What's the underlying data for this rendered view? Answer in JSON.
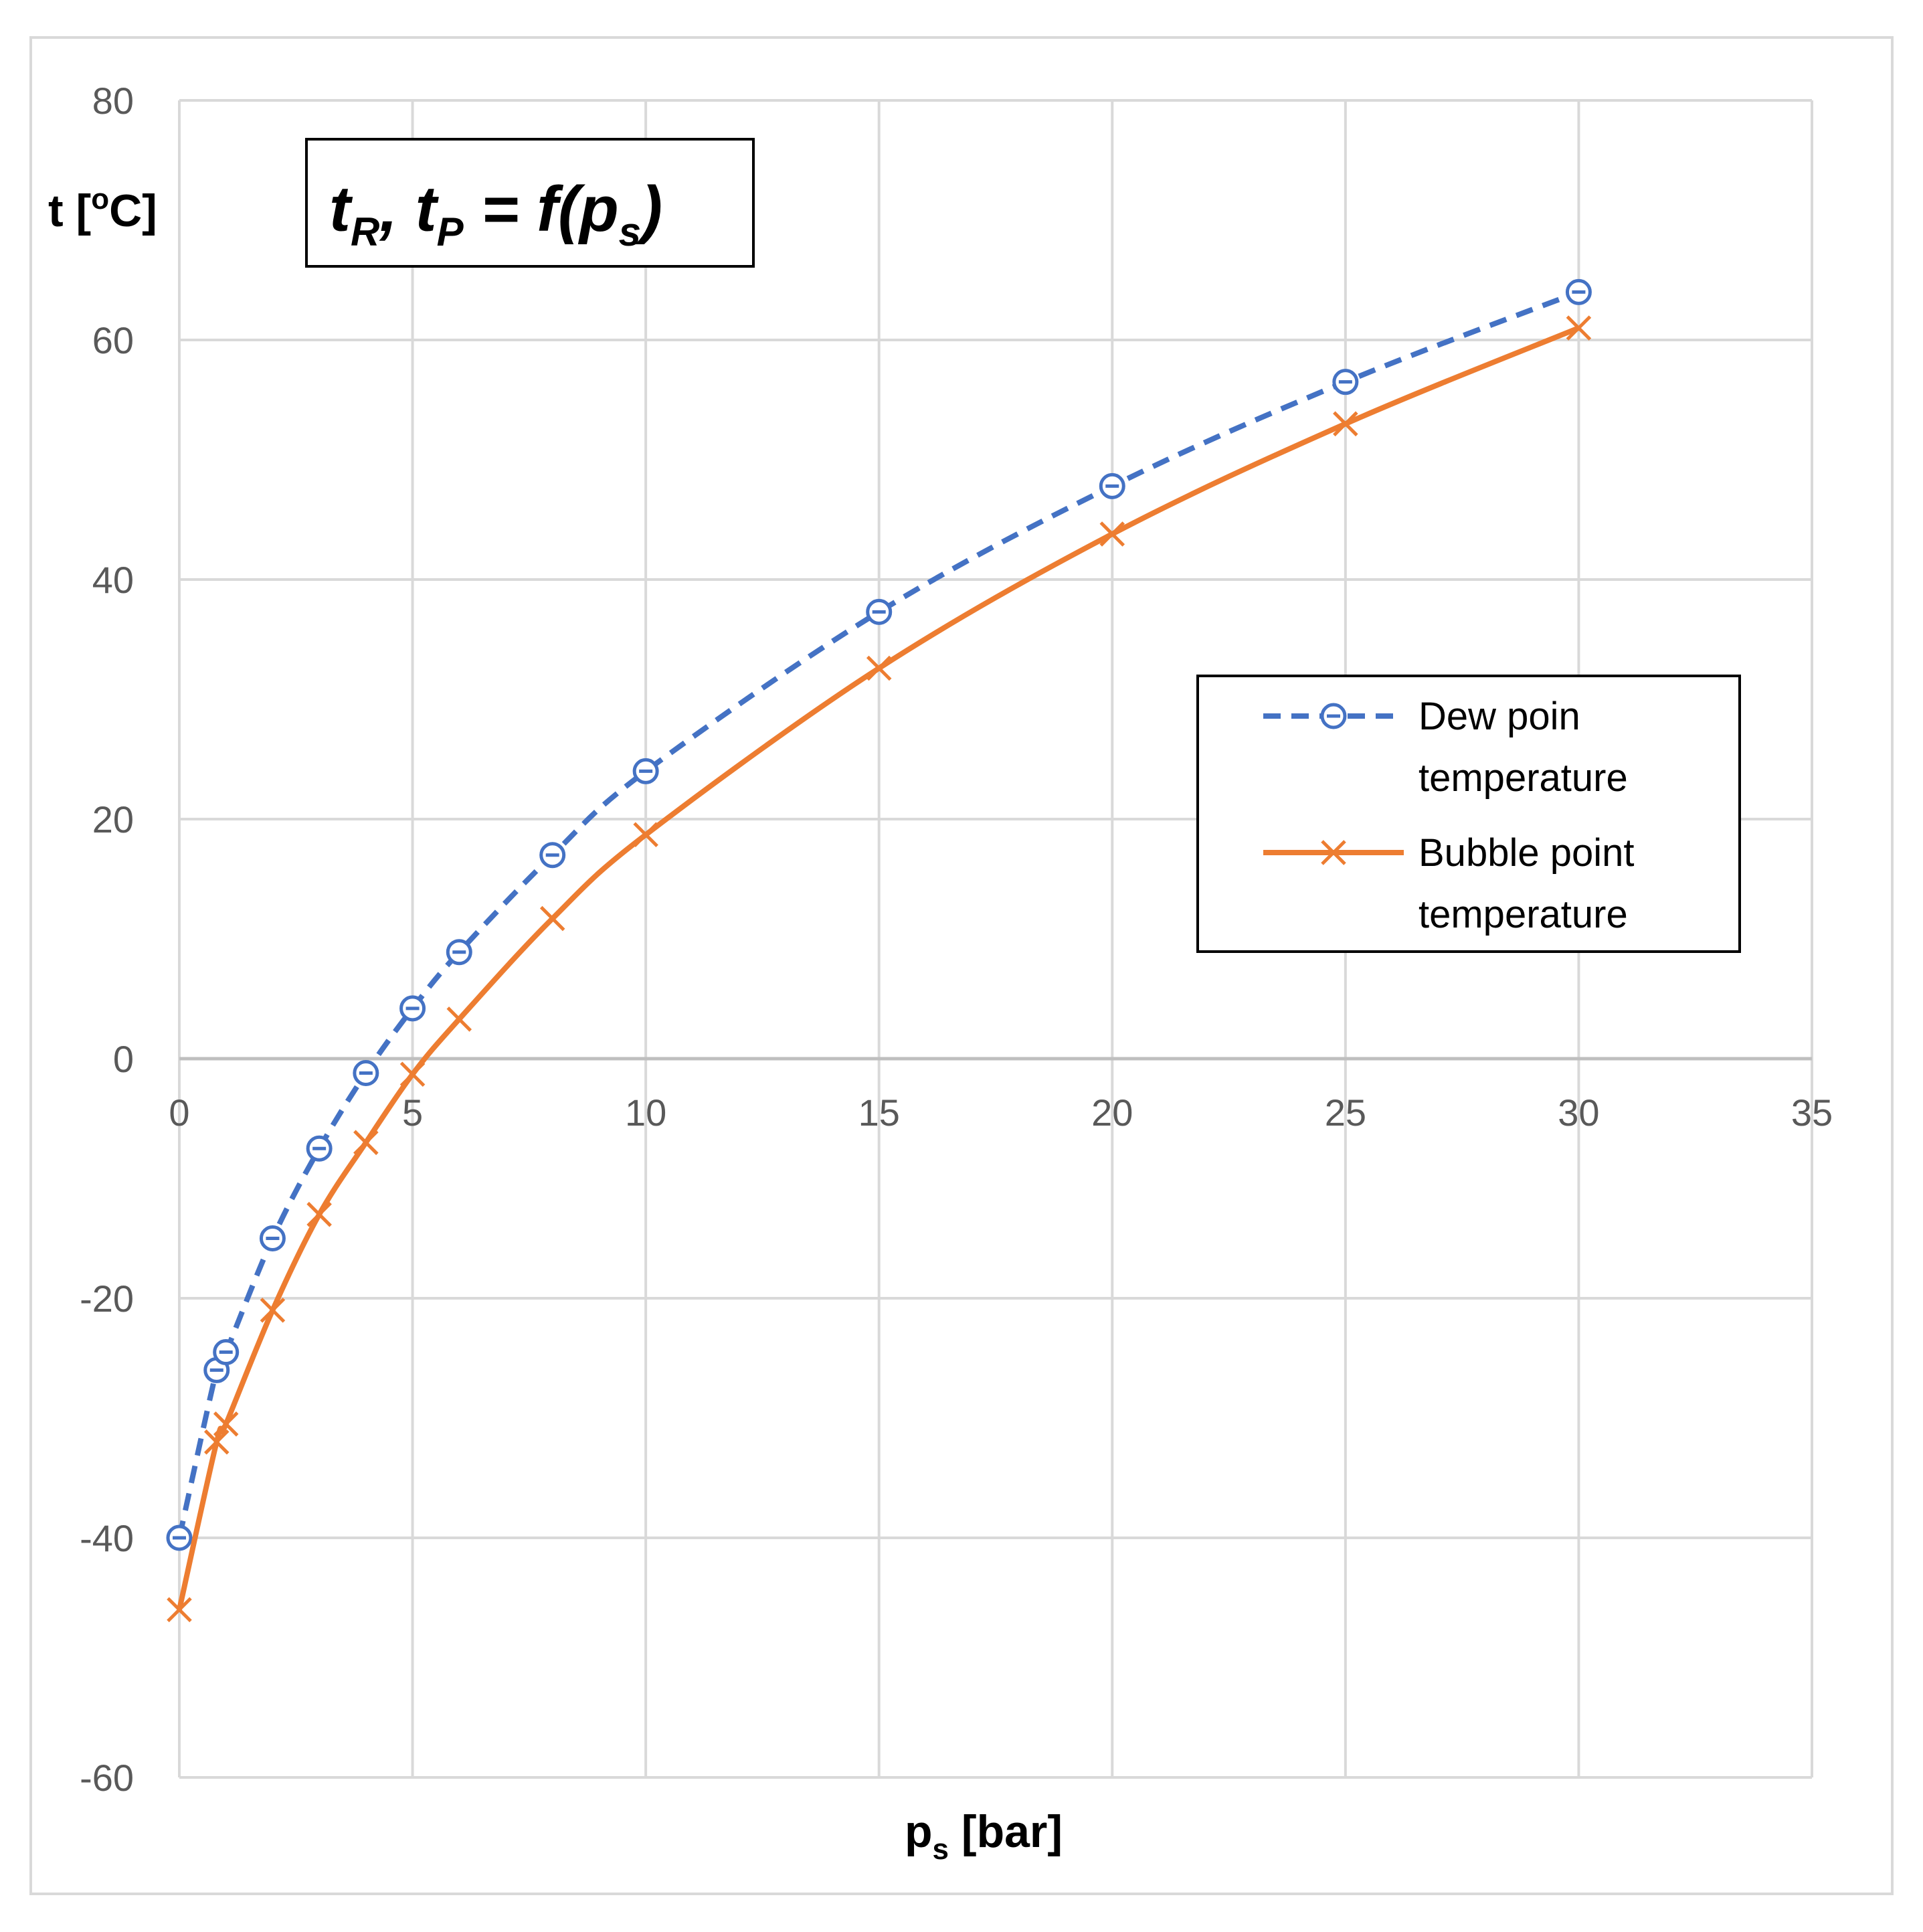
{
  "chart_data": {
    "type": "line",
    "title": {
      "main1": "t",
      "sub1": "R",
      "sep": ", ",
      "main2": "t",
      "sub2": "P",
      "eq": " = f(p",
      "sub3": "s",
      "close": ")"
    },
    "xlabel": {
      "main": "p",
      "sub": "s",
      "rest": " [bar]"
    },
    "ylabel": {
      "pre": "t [",
      "sup": "o",
      "post": "C]"
    },
    "xlim": [
      0,
      35
    ],
    "ylim": [
      -60,
      80
    ],
    "xticks": [
      0,
      5,
      10,
      15,
      20,
      25,
      30,
      35
    ],
    "yticks": [
      -60,
      -40,
      -20,
      0,
      20,
      40,
      60,
      80
    ],
    "grid": true,
    "legend_position": "right-middle",
    "series": [
      {
        "name_line1": "Dew poin",
        "name_line2": "temperature",
        "color": "#4472c4",
        "line_style": "dashed",
        "marker": "circle-dot",
        "x": [
          0,
          0.8,
          1,
          2,
          3,
          4,
          5,
          6,
          8,
          10,
          15,
          20,
          25,
          30
        ],
        "y": [
          -40,
          -26,
          -24.5,
          -15,
          -7.5,
          -1.2,
          4.2,
          8.9,
          17,
          24,
          37.3,
          47.8,
          56.5,
          64
        ]
      },
      {
        "name_line1": "Bubble point",
        "name_line2": "temperature",
        "color": "#ed7d31",
        "line_style": "solid",
        "marker": "x",
        "x": [
          0,
          0.8,
          1,
          2,
          3,
          4,
          5,
          6,
          8,
          10,
          15,
          20,
          25,
          30
        ],
        "y": [
          -46,
          -32,
          -30.5,
          -21,
          -13,
          -7,
          -1.3,
          3.3,
          11.7,
          18.7,
          32.6,
          43.8,
          53,
          61
        ]
      }
    ]
  }
}
